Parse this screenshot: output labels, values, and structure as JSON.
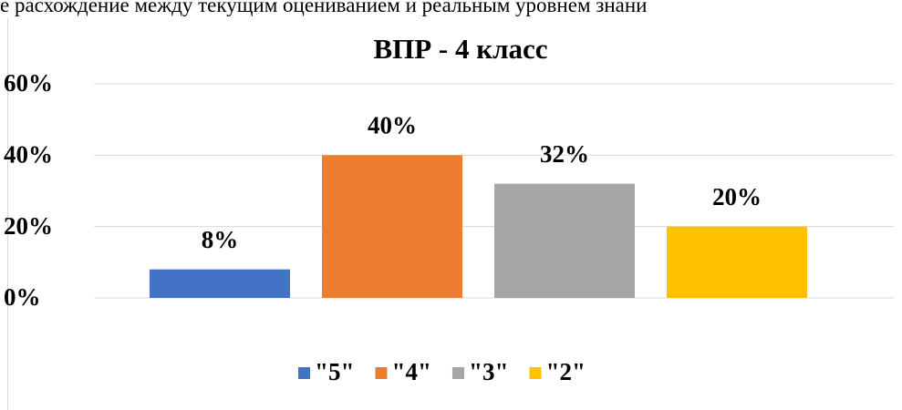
{
  "header": {
    "text": "е расхождение между текущим оцениванием и реальным уровнем знани"
  },
  "chart_data": {
    "type": "bar",
    "title": "ВПР - 4 класс",
    "categories": [
      null
    ],
    "series": [
      {
        "name": "\"5\"",
        "color": "#4472c4",
        "values": [
          8
        ],
        "value_labels": [
          "8%"
        ]
      },
      {
        "name": "\"4\"",
        "color": "#ed7d31",
        "values": [
          40
        ],
        "value_labels": [
          "40%"
        ]
      },
      {
        "name": "\"3\"",
        "color": "#a5a5a5",
        "values": [
          32
        ],
        "value_labels": [
          "32%"
        ]
      },
      {
        "name": "\"2\"",
        "color": "#ffc000",
        "values": [
          20
        ],
        "value_labels": [
          "20%"
        ]
      }
    ],
    "ylim": [
      0,
      60
    ],
    "yticks": [
      {
        "value": 0,
        "label": "0%"
      },
      {
        "value": 20,
        "label": "20%"
      },
      {
        "value": 40,
        "label": "40%"
      },
      {
        "value": 60,
        "label": "60%"
      }
    ],
    "grid": true,
    "legend": "bottom"
  }
}
